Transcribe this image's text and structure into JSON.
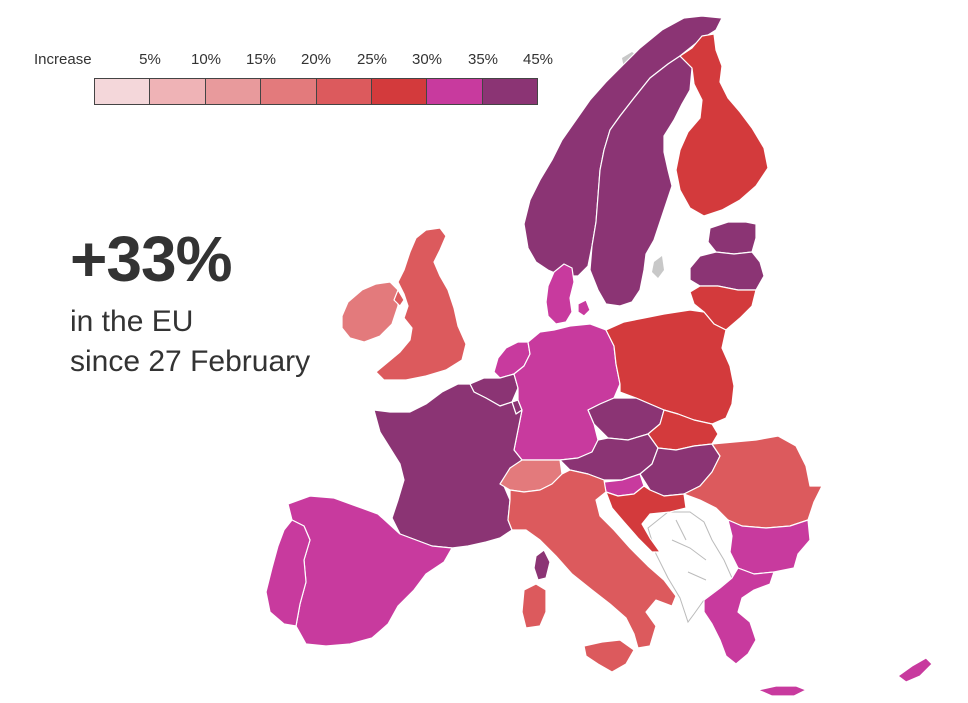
{
  "legend": {
    "title": "Increase",
    "ticks": [
      "5%",
      "10%",
      "15%",
      "20%",
      "25%",
      "30%",
      "35%",
      "45%"
    ],
    "colors": [
      "#f4d7da",
      "#efb3b6",
      "#e89a9c",
      "#e37a7c",
      "#dc5a5d",
      "#d33a3c",
      "#c83a9e",
      "#8b3474"
    ]
  },
  "headline": {
    "value": "+33%",
    "line1": "in the EU",
    "line2": "since 27 February"
  },
  "colors": {
    "no_data": "#ffffff",
    "non_eu": "#c8c8c8",
    "border": "#ffffff"
  },
  "countries": [
    {
      "name": "norway",
      "color": "#8b3474"
    },
    {
      "name": "sweden",
      "color": "#8b3474"
    },
    {
      "name": "finland",
      "color": "#d33a3c"
    },
    {
      "name": "estonia",
      "color": "#8b3474"
    },
    {
      "name": "latvia",
      "color": "#8b3474"
    },
    {
      "name": "lithuania",
      "color": "#d33a3c"
    },
    {
      "name": "denmark",
      "color": "#c83a9e"
    },
    {
      "name": "ireland",
      "color": "#e37a7c"
    },
    {
      "name": "united-kingdom",
      "color": "#dc5a5d"
    },
    {
      "name": "netherlands",
      "color": "#c83a9e"
    },
    {
      "name": "belgium",
      "color": "#8b3474"
    },
    {
      "name": "luxembourg",
      "color": "#8b3474"
    },
    {
      "name": "germany",
      "color": "#c83a9e"
    },
    {
      "name": "poland",
      "color": "#d33a3c"
    },
    {
      "name": "czechia",
      "color": "#8b3474"
    },
    {
      "name": "slovakia",
      "color": "#d33a3c"
    },
    {
      "name": "austria",
      "color": "#8b3474"
    },
    {
      "name": "hungary",
      "color": "#8b3474"
    },
    {
      "name": "slovenia",
      "color": "#c83a9e"
    },
    {
      "name": "croatia",
      "color": "#d33a3c"
    },
    {
      "name": "romania",
      "color": "#dc5a5d"
    },
    {
      "name": "bulgaria",
      "color": "#c83a9e"
    },
    {
      "name": "greece",
      "color": "#c83a9e"
    },
    {
      "name": "cyprus",
      "color": "#c83a9e"
    },
    {
      "name": "france",
      "color": "#8b3474"
    },
    {
      "name": "switzerland",
      "color": "#e37a7c"
    },
    {
      "name": "italy",
      "color": "#dc5a5d"
    },
    {
      "name": "sardinia",
      "color": "#dc5a5d"
    },
    {
      "name": "corsica",
      "color": "#8b3474"
    },
    {
      "name": "sicily",
      "color": "#dc5a5d"
    },
    {
      "name": "crete",
      "color": "#c83a9e"
    },
    {
      "name": "spain",
      "color": "#c83a9e"
    },
    {
      "name": "portugal",
      "color": "#c83a9e"
    }
  ]
}
